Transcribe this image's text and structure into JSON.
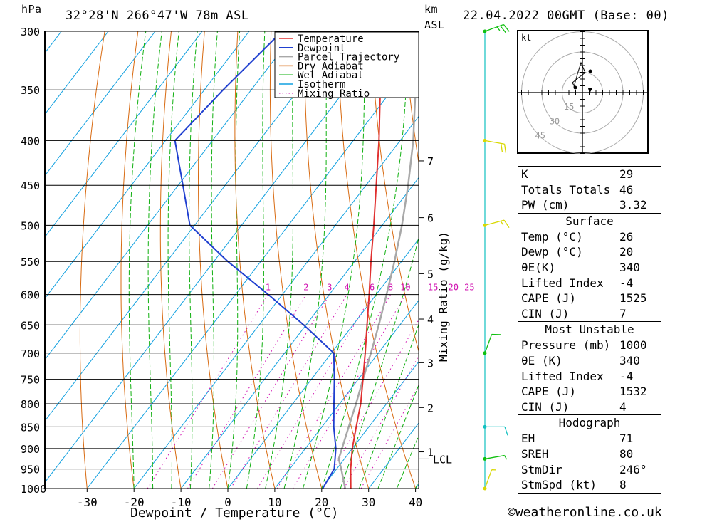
{
  "header": {
    "hpa_label": "hPa",
    "location": "32°28'N  266°47'W  78m  ASL",
    "km_label": "km",
    "asl_label": "ASL",
    "datetime": "22.04.2022  00GMT  (Base: 00)"
  },
  "colors": {
    "temperature": "#e03030",
    "dewpoint": "#2040d0",
    "parcel": "#a8a8a8",
    "dry_adiabat": "#d86a10",
    "wet_adiabat": "#10b010",
    "isotherm": "#10a0e0",
    "mixing_ratio": "#d010b0",
    "wind_barb_upper": "#d8d800",
    "wind_barb_lower": "#10c010",
    "wind_barb_surface": "#10c0c0"
  },
  "legend": {
    "items": [
      {
        "label": "Temperature",
        "style": "solid",
        "color": "#e03030"
      },
      {
        "label": "Dewpoint",
        "style": "solid",
        "color": "#2040d0"
      },
      {
        "label": "Parcel Trajectory",
        "style": "solid",
        "color": "#a8a8a8"
      },
      {
        "label": "Dry Adiabat",
        "style": "solid",
        "color": "#d86a10"
      },
      {
        "label": "Wet Adiabat",
        "style": "solid",
        "color": "#10b010"
      },
      {
        "label": "Isotherm",
        "style": "solid",
        "color": "#10a0e0"
      },
      {
        "label": "Mixing Ratio",
        "style": "dotted",
        "color": "#d010b0"
      }
    ]
  },
  "chart_data": {
    "type": "line",
    "xlabel": "Dewpoint / Temperature (°C)",
    "ylabel": "hPa",
    "mixing_ratio_axis_label": "Mixing Ratio (g/kg)",
    "pressure_levels": [
      300,
      350,
      400,
      450,
      500,
      550,
      600,
      650,
      700,
      750,
      800,
      850,
      900,
      950,
      1000
    ],
    "x_ticks": [
      -30,
      -20,
      -10,
      0,
      10,
      20,
      30,
      40
    ],
    "x_range": [
      -40,
      40
    ],
    "y_range_hpa": [
      1000,
      300
    ],
    "y_scale": "log",
    "height_ticks": [
      {
        "label": "7",
        "p": 422
      },
      {
        "label": "6",
        "p": 490
      },
      {
        "label": "5",
        "p": 568
      },
      {
        "label": "4",
        "p": 640
      },
      {
        "label": "3",
        "p": 718
      },
      {
        "label": "2",
        "p": 808
      },
      {
        "label": "1",
        "p": 908
      }
    ],
    "lcl": {
      "label": "LCL",
      "p": 925
    },
    "mixing_ratio_labels": [
      "1",
      "2",
      "3",
      "4",
      "6",
      "8",
      "10",
      "15",
      "20",
      "25"
    ],
    "mixing_ratio_values": [
      1,
      2,
      3,
      4,
      6,
      8,
      10,
      15,
      20,
      25
    ],
    "series": [
      {
        "name": "Temperature",
        "points": [
          {
            "p": 1000,
            "t": 26.2
          },
          {
            "p": 950,
            "t": 23.0
          },
          {
            "p": 900,
            "t": 20.0
          },
          {
            "p": 850,
            "t": 17.3
          },
          {
            "p": 800,
            "t": 14.5
          },
          {
            "p": 750,
            "t": 11.0
          },
          {
            "p": 700,
            "t": 7.2
          },
          {
            "p": 650,
            "t": 3.0
          },
          {
            "p": 600,
            "t": -1.5
          },
          {
            "p": 550,
            "t": -6.5
          },
          {
            "p": 500,
            "t": -11.8
          },
          {
            "p": 450,
            "t": -17.8
          },
          {
            "p": 400,
            "t": -24.5
          },
          {
            "p": 350,
            "t": -32.5
          },
          {
            "p": 300,
            "t": -41.5
          }
        ]
      },
      {
        "name": "Dewpoint",
        "points": [
          {
            "p": 1000,
            "t": 20.2
          },
          {
            "p": 950,
            "t": 19.5
          },
          {
            "p": 900,
            "t": 16.5
          },
          {
            "p": 850,
            "t": 12.5
          },
          {
            "p": 800,
            "t": 8.8
          },
          {
            "p": 750,
            "t": 4.9
          },
          {
            "p": 700,
            "t": 0.5
          },
          {
            "p": 650,
            "t": -10.5
          },
          {
            "p": 600,
            "t": -23.0
          },
          {
            "p": 550,
            "t": -37.0
          },
          {
            "p": 500,
            "t": -51.0
          },
          {
            "p": 450,
            "t": -59.0
          },
          {
            "p": 400,
            "t": -68.0
          },
          {
            "p": 350,
            "t": -66.0
          },
          {
            "p": 300,
            "t": -63.0
          }
        ]
      },
      {
        "name": "Parcel Trajectory",
        "points": [
          {
            "p": 1000,
            "t": 25.0
          },
          {
            "p": 950,
            "t": 21.0
          },
          {
            "p": 925,
            "t": 18.8
          },
          {
            "p": 900,
            "t": 17.8
          },
          {
            "p": 850,
            "t": 15.7
          },
          {
            "p": 800,
            "t": 13.5
          },
          {
            "p": 750,
            "t": 11.0
          },
          {
            "p": 700,
            "t": 8.4
          },
          {
            "p": 650,
            "t": 5.5
          },
          {
            "p": 600,
            "t": 2.2
          },
          {
            "p": 550,
            "t": -1.5
          },
          {
            "p": 500,
            "t": -5.8
          },
          {
            "p": 450,
            "t": -11.0
          },
          {
            "p": 400,
            "t": -17.2
          },
          {
            "p": 350,
            "t": -25.0
          },
          {
            "p": 300,
            "t": -34.5
          }
        ]
      }
    ]
  },
  "winds": [
    {
      "p": 300,
      "dir": 250,
      "speed": 25,
      "color": "#10c010"
    },
    {
      "p": 400,
      "dir": 280,
      "speed": 20,
      "color": "#d8d800"
    },
    {
      "p": 500,
      "dir": 255,
      "speed": 15,
      "color": "#d8d800"
    },
    {
      "p": 700,
      "dir": 200,
      "speed": 10,
      "color": "#10c010"
    },
    {
      "p": 850,
      "dir": 270,
      "speed": 10,
      "color": "#10c0c0"
    },
    {
      "p": 925,
      "dir": 260,
      "speed": 5,
      "color": "#10c010"
    },
    {
      "p": 1000,
      "dir": 200,
      "speed": 5,
      "color": "#d8d800"
    }
  ],
  "hodograph": {
    "unit_label": "kt",
    "ring_labels": [
      "15",
      "30",
      "45"
    ],
    "ring_values": [
      15,
      30,
      45
    ]
  },
  "indices": {
    "top": [
      {
        "label": "K",
        "value": "29"
      },
      {
        "label": "Totals Totals",
        "value": "46"
      },
      {
        "label": "PW (cm)",
        "value": "3.32"
      }
    ],
    "surface": {
      "title": "Surface",
      "rows": [
        {
          "label": "Temp (°C)",
          "value": "26"
        },
        {
          "label": "Dewp (°C)",
          "value": "20"
        },
        {
          "label": "θE(K)",
          "value": "340"
        },
        {
          "label": "Lifted Index",
          "value": "-4"
        },
        {
          "label": "CAPE (J)",
          "value": "1525"
        },
        {
          "label": "CIN (J)",
          "value": "7"
        }
      ]
    },
    "most_unstable": {
      "title": "Most Unstable",
      "rows": [
        {
          "label": "Pressure (mb)",
          "value": "1000"
        },
        {
          "label": "θE (K)",
          "value": "340"
        },
        {
          "label": "Lifted Index",
          "value": "-4"
        },
        {
          "label": "CAPE (J)",
          "value": "1532"
        },
        {
          "label": "CIN (J)",
          "value": "4"
        }
      ]
    },
    "hodograph": {
      "title": "Hodograph",
      "rows": [
        {
          "label": "EH",
          "value": "71"
        },
        {
          "label": "SREH",
          "value": "80"
        },
        {
          "label": "StmDir",
          "value": "246°"
        },
        {
          "label": "StmSpd (kt)",
          "value": "8"
        }
      ]
    }
  },
  "footer": {
    "copyright": "©weatheronline.co.uk"
  }
}
